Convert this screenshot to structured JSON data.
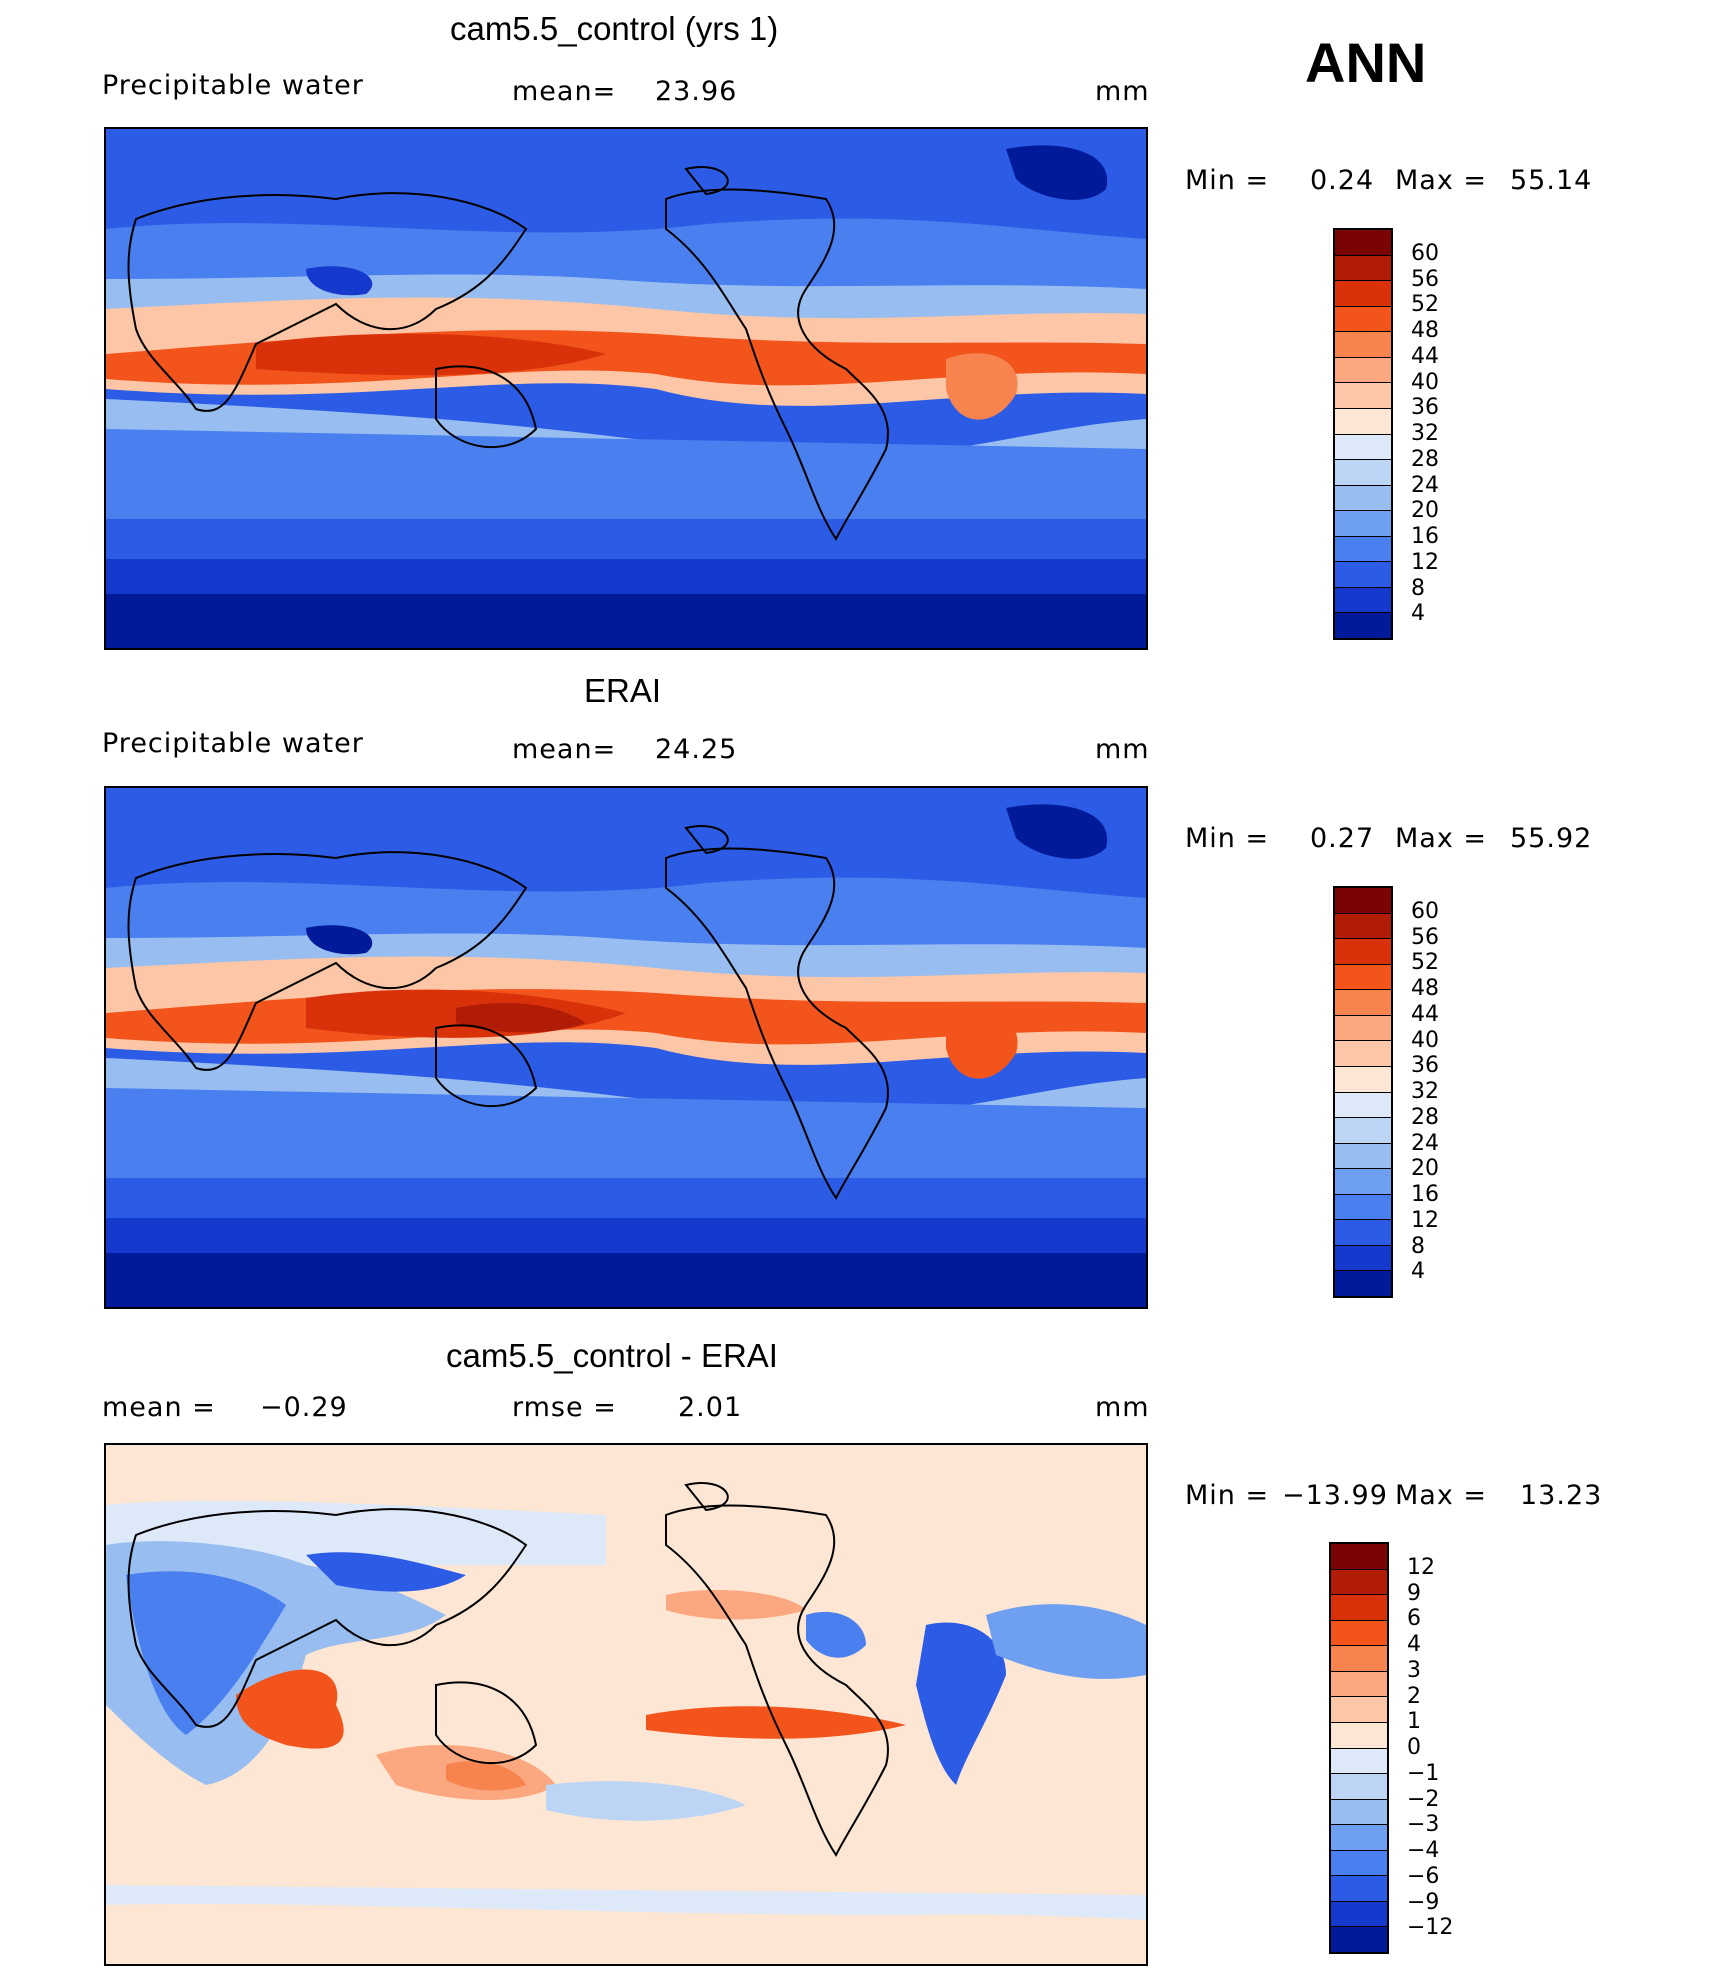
{
  "annotation": "ANN",
  "units": "mm",
  "panels": [
    {
      "title": "cam5.5_control (yrs 1)",
      "field": "Precipitable water",
      "mean_label": "mean=",
      "mean_value": "23.96",
      "min_label": "Min  =",
      "min_value": "0.24",
      "max_label": "Max  =",
      "max_value": "55.14"
    },
    {
      "title": "ERAI",
      "field": "Precipitable water",
      "mean_label": "mean=",
      "mean_value": "24.25",
      "min_label": "Min  =",
      "min_value": "0.27",
      "max_label": "Max  =",
      "max_value": "55.92"
    },
    {
      "title": "cam5.5_control - ERAI",
      "mean_label": "mean  =",
      "mean_value": "−0.29",
      "rmse_label": "rmse  =",
      "rmse_value": "2.01",
      "min_label": "Min  =",
      "min_value": "−13.99",
      "max_label": "Max  =",
      "max_value": "13.23"
    }
  ],
  "chart_data": [
    {
      "type": "heatmap",
      "title": "cam5.5_control (yrs 1)",
      "field": "Precipitable water",
      "units": "mm",
      "mean": 23.96,
      "min": 0.24,
      "max": 55.14,
      "colorbar_levels": [
        "60",
        "56",
        "52",
        "48",
        "44",
        "40",
        "36",
        "32",
        "28",
        "24",
        "20",
        "16",
        "12",
        "8",
        "4"
      ],
      "colorbar_colors": [
        "#7a0403",
        "#b11c06",
        "#d9320b",
        "#f2541c",
        "#f7834f",
        "#fba77f",
        "#fdc6a6",
        "#fde6d3",
        "#dde9f8",
        "#bdd5f4",
        "#98bdf0",
        "#6f9ff0",
        "#4a7ff0",
        "#2c5ce6",
        "#1439cc",
        "#001a99"
      ]
    },
    {
      "type": "heatmap",
      "title": "ERAI",
      "field": "Precipitable water",
      "units": "mm",
      "mean": 24.25,
      "min": 0.27,
      "max": 55.92,
      "colorbar_levels": [
        "60",
        "56",
        "52",
        "48",
        "44",
        "40",
        "36",
        "32",
        "28",
        "24",
        "20",
        "16",
        "12",
        "8",
        "4"
      ],
      "colorbar_colors": [
        "#7a0403",
        "#b11c06",
        "#d9320b",
        "#f2541c",
        "#f7834f",
        "#fba77f",
        "#fdc6a6",
        "#fde6d3",
        "#dde9f8",
        "#bdd5f4",
        "#98bdf0",
        "#6f9ff0",
        "#4a7ff0",
        "#2c5ce6",
        "#1439cc",
        "#001a99"
      ]
    },
    {
      "type": "heatmap",
      "title": "cam5.5_control - ERAI",
      "units": "mm",
      "mean": -0.29,
      "rmse": 2.01,
      "min": -13.99,
      "max": 13.23,
      "colorbar_levels": [
        "12",
        "9",
        "6",
        "4",
        "3",
        "2",
        "1",
        "0",
        "−1",
        "−2",
        "−3",
        "−4",
        "−6",
        "−9",
        "−12"
      ],
      "colorbar_colors": [
        "#7a0403",
        "#b11c06",
        "#d9320b",
        "#f2541c",
        "#f7834f",
        "#fba77f",
        "#fdc6a6",
        "#fde6d3",
        "#dde9f8",
        "#bdd5f4",
        "#98bdf0",
        "#6f9ff0",
        "#4a7ff0",
        "#2c5ce6",
        "#1439cc",
        "#001a99"
      ]
    }
  ]
}
